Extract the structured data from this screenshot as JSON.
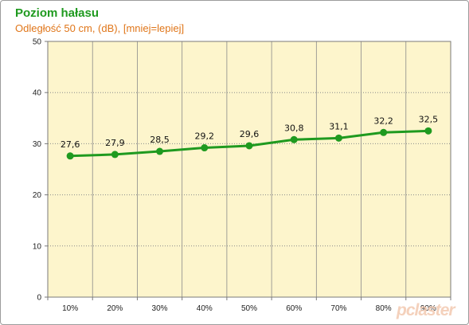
{
  "chart_data": {
    "type": "line",
    "title": "Poziom hałasu",
    "subtitle": "Odległość 50 cm, (dB), [mniej=lepiej]",
    "categories": [
      "10%",
      "20%",
      "30%",
      "40%",
      "50%",
      "60%",
      "70%",
      "80%",
      "90%"
    ],
    "series": [
      {
        "values": [
          27.6,
          27.9,
          28.5,
          29.2,
          29.6,
          30.8,
          31.1,
          32.2,
          32.5
        ],
        "labels": [
          "27,6",
          "27,9",
          "28,5",
          "29,2",
          "29,6",
          "30,8",
          "31,1",
          "32,2",
          "32,5"
        ],
        "color": "#1f9a1f"
      }
    ],
    "ylim": [
      0,
      50
    ],
    "yticks": [
      0,
      10,
      20,
      30,
      40,
      50
    ],
    "grid": true,
    "colors": {
      "plot_background": "#fdf5cc",
      "gridline": "#8a8a8a"
    }
  },
  "watermark": "pclaster"
}
